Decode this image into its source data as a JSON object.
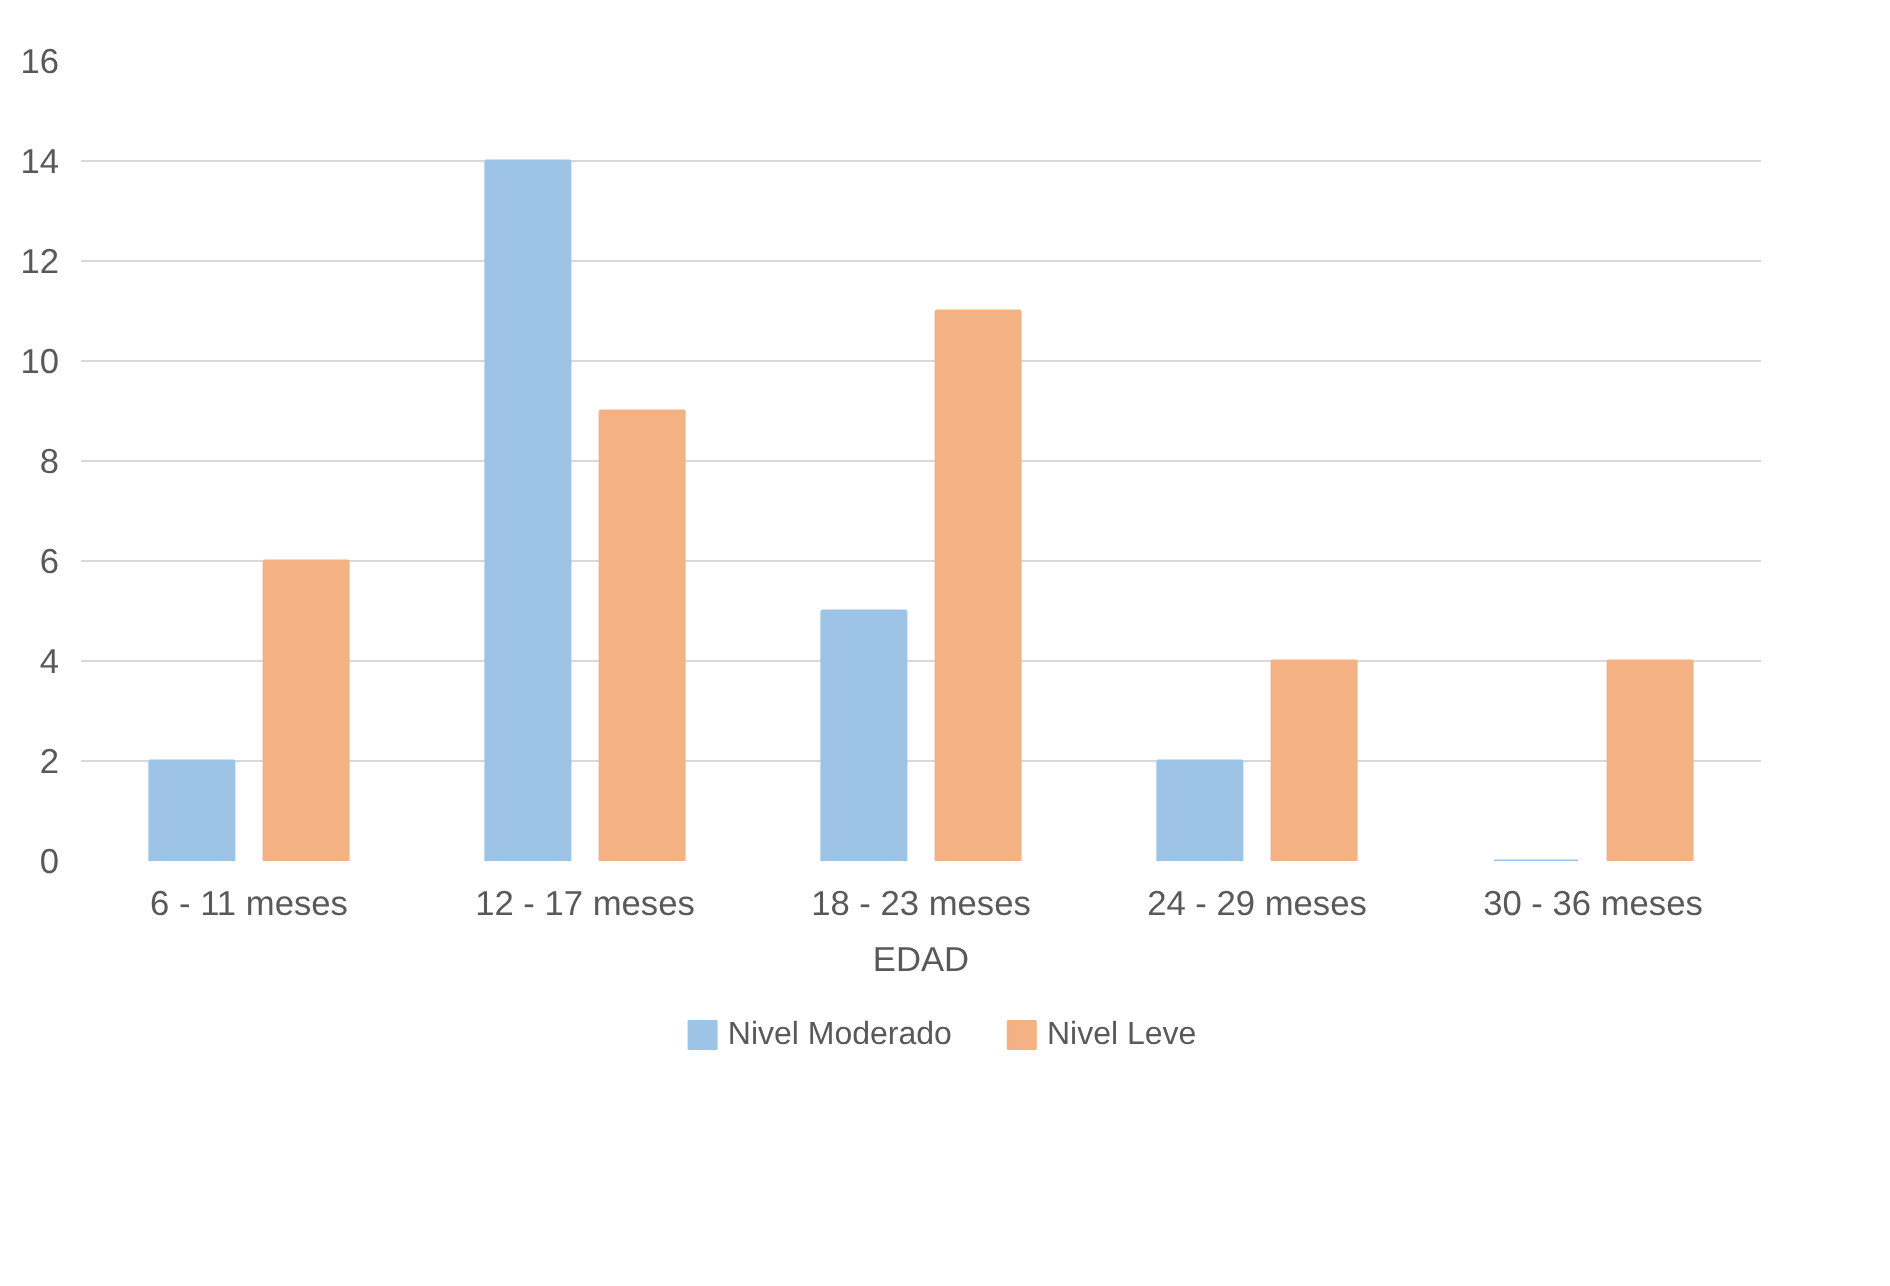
{
  "chart_data": {
    "type": "bar",
    "xlabel": "EDAD",
    "categories": [
      "6 - 11 meses",
      "12 - 17 meses",
      "18 - 23 meses",
      "24 - 29 meses",
      "30 - 36 meses"
    ],
    "series": [
      {
        "name": "Nivel Moderado",
        "color": "#9dc3e6",
        "values": [
          2,
          14,
          5,
          2,
          0
        ]
      },
      {
        "name": "Nivel Leve",
        "color": "#f4b183",
        "values": [
          6,
          9,
          11,
          4,
          4
        ]
      }
    ],
    "ylim": [
      0,
      16
    ],
    "yticks": [
      0,
      2,
      4,
      6,
      8,
      10,
      12,
      14,
      16
    ],
    "grid": "y",
    "legend": "bottom"
  }
}
